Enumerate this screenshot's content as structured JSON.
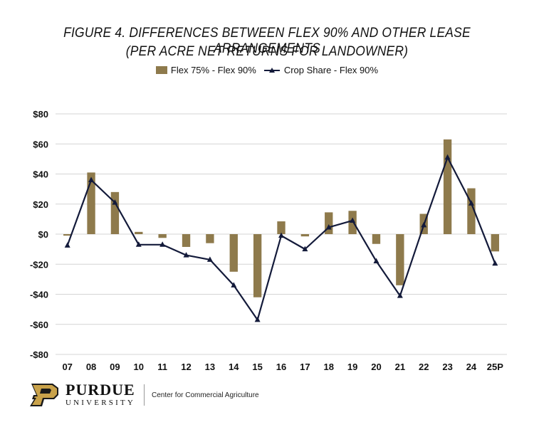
{
  "chart_data": {
    "type": "bar+line",
    "title_line1": "FIGURE 4. DIFFERENCES BETWEEN FLEX 90% AND OTHER LEASE ARRANGEMENTS",
    "title_line2": "(PER ACRE NET RETURNS FOR LANDOWNER)",
    "categories": [
      "07",
      "08",
      "09",
      "10",
      "11",
      "12",
      "13",
      "14",
      "15",
      "16",
      "17",
      "18",
      "19",
      "20",
      "21",
      "22",
      "23",
      "24",
      "25P"
    ],
    "series": [
      {
        "name": "Flex 75% - Flex 90%",
        "kind": "bar",
        "color": "#8e7a4c",
        "values": [
          -1,
          41,
          28,
          1.5,
          -2.5,
          -8.5,
          -6,
          -25,
          -42,
          8.5,
          -1.5,
          14.5,
          15.5,
          -6.5,
          -34,
          13.5,
          63,
          30.5,
          -11.5
        ]
      },
      {
        "name": "Crop Share - Flex 90%",
        "kind": "line",
        "color": "#131a3a",
        "values": [
          -7.5,
          36,
          21,
          -7,
          -7,
          -14,
          -17,
          -34,
          -57,
          -1,
          -10,
          4.5,
          9,
          -18,
          -41,
          6,
          51,
          20.5,
          -19.5
        ]
      }
    ],
    "ylim": [
      -80,
      80
    ],
    "yticks": [
      80,
      60,
      40,
      20,
      0,
      -20,
      -40,
      -60,
      -80
    ],
    "ytick_labels": [
      "$80",
      "$60",
      "$40",
      "$20",
      "$0",
      "-$20",
      "-$40",
      "-$60",
      "-$80"
    ],
    "grid": true,
    "legend_position": "top-center"
  },
  "footer": {
    "brand_name": "PURDUE",
    "brand_sub": "UNIVERSITY",
    "center_name": "Center for Commercial Agriculture"
  }
}
